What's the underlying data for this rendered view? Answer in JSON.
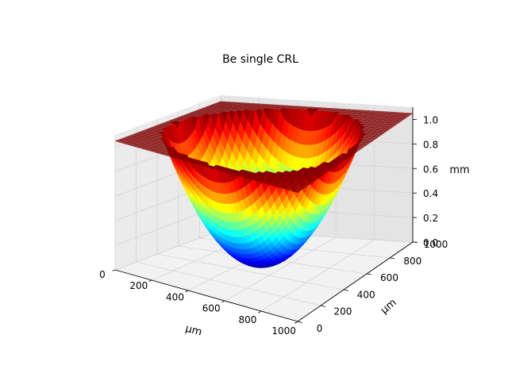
{
  "chart_data": {
    "type": "surface",
    "title": "Be single CRL",
    "xlabel": "μm",
    "ylabel": "μm",
    "zlabel": "mm",
    "x_ticks": [
      0,
      200,
      400,
      600,
      800,
      1000
    ],
    "y_ticks": [
      0,
      200,
      400,
      600,
      800,
      1000
    ],
    "z_ticks": [
      0.0,
      0.2,
      0.4,
      0.6,
      0.8,
      1.0
    ],
    "x_tick_labels": [
      "0",
      "200",
      "400",
      "600",
      "800",
      "1000"
    ],
    "y_tick_labels": [
      "0",
      "200",
      "400",
      "600",
      "800",
      "1000"
    ],
    "z_tick_labels": [
      "0.0",
      "0.2",
      "0.4",
      "0.6",
      "0.8",
      "1.0"
    ],
    "xlim": [
      0,
      1000
    ],
    "ylim": [
      0,
      1000
    ],
    "zlim": [
      0,
      1.1
    ],
    "surface": {
      "shape": "paraboloid",
      "center_x": 500,
      "center_y": 500,
      "aperture_radius": 450,
      "min_z": 0.0,
      "rim_z": 1.0,
      "flat_z": 1.05
    },
    "colormap": "jet",
    "grid": true,
    "pane_color": "#f2f2f2",
    "grid_color": "#d6d6d6"
  }
}
